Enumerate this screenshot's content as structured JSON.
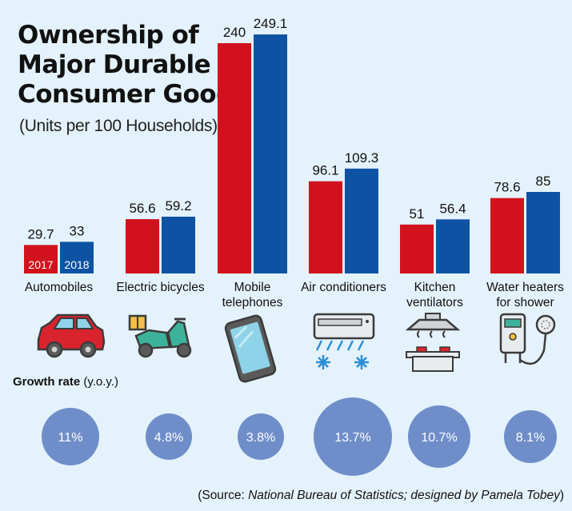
{
  "header": {
    "title_lines": [
      "Ownership of",
      "Major Durable",
      "Consumer Goods"
    ],
    "subtitle": "(Units per 100 Households)"
  },
  "growth": {
    "label_bold": "Growth rate",
    "label_unit": "(y.o.y.)"
  },
  "footer": {
    "source_prefix": "(Source: ",
    "source_italic": "National Bureau of Statistics; designed by Pamela Tobey",
    "source_suffix": ")"
  },
  "colors": {
    "series_2017": "#d1121c",
    "series_2018": "#0e53a3",
    "bubble": "#6f8ec9",
    "background": "#e4f2fb"
  },
  "icons": [
    "car-icon",
    "scooter-icon",
    "phone-icon",
    "air-conditioner-icon",
    "range-hood-icon",
    "water-heater-icon"
  ],
  "chart_data": {
    "type": "bar",
    "title": "Ownership of Major Durable Consumer Goods",
    "subtitle": "(Units per 100 Households)",
    "categories": [
      "Automobiles",
      "Electric bicycles",
      "Mobile telephones",
      "Air conditioners",
      "Kitchen ventilators",
      "Water heaters for shower"
    ],
    "category_lines": [
      [
        "Automobiles"
      ],
      [
        "Electric bicycles"
      ],
      [
        "Mobile",
        "telephones"
      ],
      [
        "Air conditioners"
      ],
      [
        "Kitchen",
        "ventilators"
      ],
      [
        "Water heaters",
        "for shower"
      ]
    ],
    "series": [
      {
        "name": "2017",
        "values": [
          29.7,
          56.6,
          240,
          96.1,
          51,
          78.6
        ]
      },
      {
        "name": "2018",
        "values": [
          33,
          59.2,
          249.1,
          109.3,
          56.4,
          85
        ]
      }
    ],
    "value_labels": [
      [
        "29.7",
        "33"
      ],
      [
        "56.6",
        "59.2"
      ],
      [
        "240",
        "249.1"
      ],
      [
        "96.1",
        "109.3"
      ],
      [
        "51",
        "56.4"
      ],
      [
        "78.6",
        "85"
      ]
    ],
    "growth_rate": [
      "11%",
      "4.8%",
      "3.8%",
      "13.7%",
      "10.7%",
      "8.1%"
    ],
    "growth_rate_values": [
      11,
      4.8,
      3.8,
      13.7,
      10.7,
      8.1
    ],
    "legend_placement": "inside first bars",
    "grid": false
  }
}
